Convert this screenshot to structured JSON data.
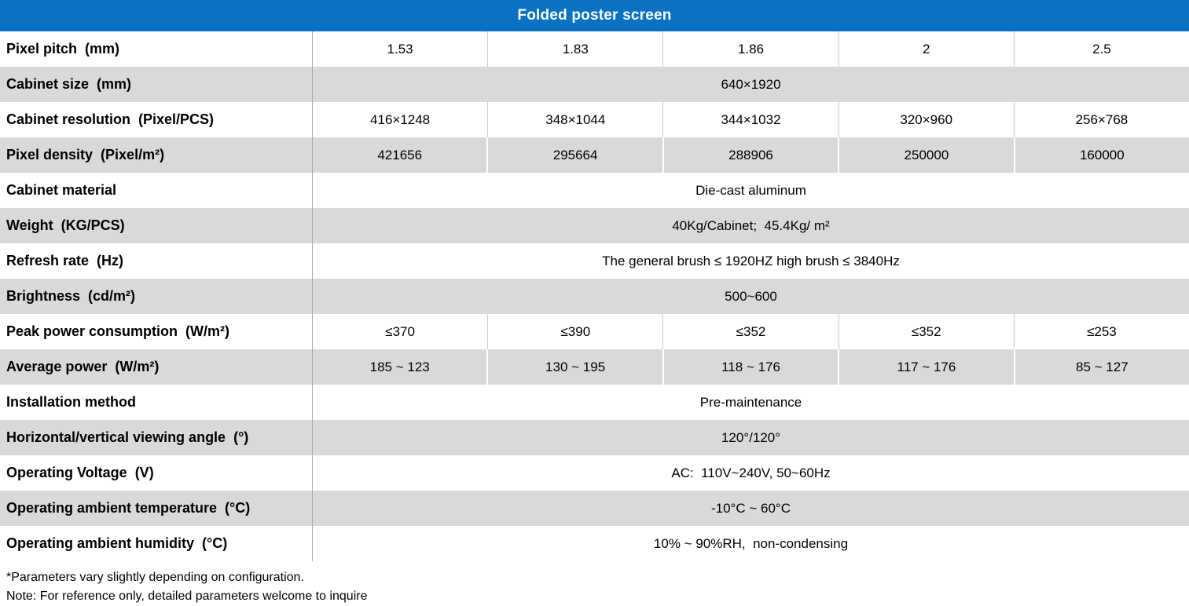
{
  "header": {
    "title": "Folded poster screen"
  },
  "colors": {
    "header_bg": "#0b71c3",
    "header_text": "#ffffff",
    "alt_row_bg": "#d9d9d9",
    "grid_line": "#ababab"
  },
  "table": {
    "rows": [
      {
        "label": "Pixel pitch  (mm)",
        "values": [
          "1.53",
          "1.83",
          "1.86",
          "2",
          "2.5"
        ]
      },
      {
        "label": "Cabinet size  (mm)",
        "span": "640×1920"
      },
      {
        "label": "Cabinet resolution  (Pixel/PCS)",
        "values": [
          "416×1248",
          "348×1044",
          "344×1032",
          "320×960",
          "256×768"
        ]
      },
      {
        "label": "Pixel density  (Pixel/m²)",
        "values": [
          "421656",
          "295664",
          "288906",
          "250000",
          "160000"
        ]
      },
      {
        "label": "Cabinet material",
        "span": "Die-cast aluminum"
      },
      {
        "label": "Weight  (KG/PCS)",
        "span": "40Kg/Cabinet;  45.4Kg/ m²"
      },
      {
        "label": "Refresh rate  (Hz)",
        "span": "The general brush ≤ 1920HZ high brush ≤ 3840Hz"
      },
      {
        "label": "Brightness  (cd/m²)",
        "span": "500~600"
      },
      {
        "label": "Peak power consumption  (W/m²)",
        "values": [
          "≤370",
          "≤390",
          "≤352",
          "≤352",
          "≤253"
        ]
      },
      {
        "label": "Average power  (W/m²)",
        "values": [
          "185 ~ 123",
          "130 ~ 195",
          "118 ~ 176",
          "117 ~ 176",
          "85 ~ 127"
        ]
      },
      {
        "label": "Installation method",
        "span": "Pre-maintenance"
      },
      {
        "label": "Horizontal/vertical viewing angle  (°)",
        "span": "120°/120°"
      },
      {
        "label": "Operating Voltage  (V)",
        "span": "AC:  110V~240V, 50~60Hz"
      },
      {
        "label": "Operating ambient temperature  (°C)",
        "span": "-10°C ~ 60°C"
      },
      {
        "label": "Operating ambient humidity  (°C)",
        "span": "10% ~ 90%RH,  non-condensing"
      }
    ]
  },
  "footnotes": [
    "*Parameters vary slightly depending on configuration.",
    "Note: For reference only, detailed parameters welcome to inquire"
  ]
}
